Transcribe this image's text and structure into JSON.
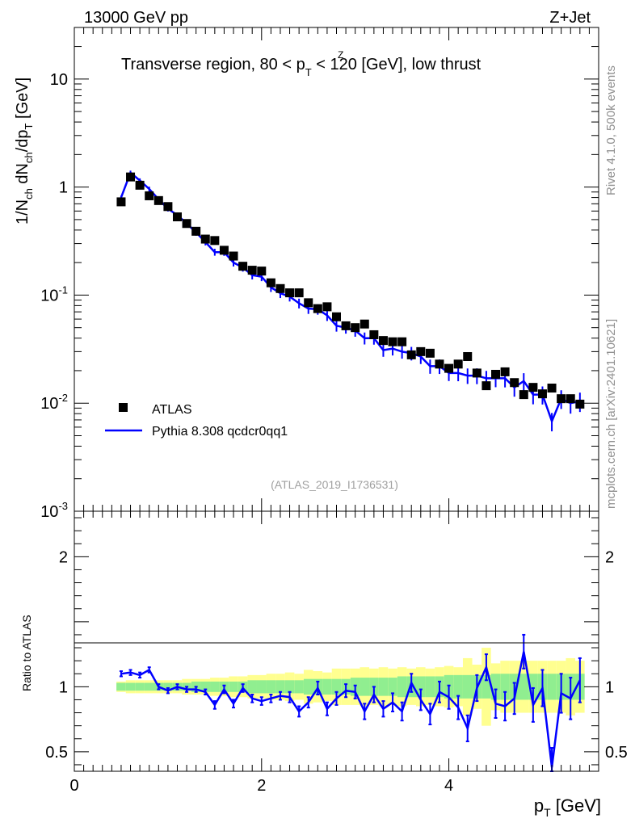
{
  "header": {
    "left": "13000 GeV pp",
    "right": "Z+Jet"
  },
  "side_labels": {
    "rivet": "Rivet 4.1.0,  500k events",
    "mcplots": "mcplots.cern.ch [arXiv:2401.10621]"
  },
  "chart_data": {
    "type": "scatter",
    "title_parts": {
      "a": "Transverse region, 80 < p",
      "sub": "T",
      "sup": "Z",
      "b": " < 120 [GeV], low thrust"
    },
    "watermark": "(ATLAS_2019_I1736531)",
    "xlabel": "p_T [GeV]",
    "ylabel": "1/N_ch dN_ch/dp_T [GeV]",
    "ratio_ylabel": "Ratio to ATLAS",
    "xlim": [
      0,
      5.6
    ],
    "ylim": [
      0.001,
      30
    ],
    "ratio_ylim": [
      0.35,
      2.35
    ],
    "x_ticks": [
      "0",
      "2",
      "4"
    ],
    "x_tick_values": [
      0,
      2,
      4
    ],
    "y_ticks": [
      "10",
      "1",
      "10^-1",
      "10^-2",
      "10^-3"
    ],
    "y_tick_values": [
      10,
      1,
      0.1,
      0.01,
      0.001
    ],
    "ratio_ticks": [
      "2",
      "1",
      "0.5"
    ],
    "ratio_tick_values": [
      2,
      1,
      0.5
    ],
    "legend": {
      "data_label": "ATLAS",
      "mc_label": "Pythia 8.308 qcdcr0qq1",
      "position": "lower-left"
    },
    "colors": {
      "data": "#000000",
      "mc": "#0000ff",
      "band_inner": "#90ee90",
      "band_outer": "#ffff90"
    },
    "x": [
      0.5,
      0.6,
      0.7,
      0.8,
      0.9,
      1.0,
      1.1,
      1.2,
      1.3,
      1.4,
      1.5,
      1.6,
      1.7,
      1.8,
      1.9,
      2.0,
      2.1,
      2.2,
      2.3,
      2.4,
      2.5,
      2.6,
      2.7,
      2.8,
      2.9,
      3.0,
      3.1,
      3.2,
      3.3,
      3.4,
      3.5,
      3.6,
      3.7,
      3.8,
      3.9,
      4.0,
      4.1,
      4.2,
      4.3,
      4.4,
      4.5,
      4.6,
      4.7,
      4.8,
      4.9,
      5.0,
      5.1,
      5.2,
      5.3,
      5.4
    ],
    "data_values": [
      0.73,
      1.24,
      1.04,
      0.83,
      0.75,
      0.66,
      0.53,
      0.46,
      0.39,
      0.33,
      0.32,
      0.26,
      0.23,
      0.185,
      0.17,
      0.167,
      0.13,
      0.115,
      0.105,
      0.105,
      0.085,
      0.075,
      0.078,
      0.063,
      0.052,
      0.05,
      0.054,
      0.043,
      0.038,
      0.037,
      0.037,
      0.028,
      0.03,
      0.029,
      0.023,
      0.021,
      0.023,
      0.027,
      0.019,
      0.0145,
      0.0185,
      0.0195,
      0.0155,
      0.012,
      0.014,
      0.0122,
      0.0138,
      0.011,
      0.011,
      0.0098
    ],
    "mc_values": [
      0.8,
      1.36,
      1.15,
      0.96,
      0.77,
      0.63,
      0.55,
      0.46,
      0.38,
      0.31,
      0.25,
      0.25,
      0.2,
      0.18,
      0.153,
      0.148,
      0.118,
      0.104,
      0.097,
      0.084,
      0.075,
      0.074,
      0.065,
      0.052,
      0.05,
      0.047,
      0.04,
      0.04,
      0.031,
      0.032,
      0.03,
      0.029,
      0.027,
      0.022,
      0.022,
      0.019,
      0.019,
      0.018,
      0.018,
      0.017,
      0.017,
      0.017,
      0.014,
      0.016,
      0.012,
      0.012,
      0.0068,
      0.011,
      0.01,
      0.0104
    ],
    "ratio_values": [
      1.1,
      1.11,
      1.09,
      1.13,
      1.0,
      0.97,
      1.0,
      0.98,
      0.98,
      0.96,
      0.86,
      0.98,
      0.87,
      0.99,
      0.91,
      0.89,
      0.91,
      0.93,
      0.92,
      0.81,
      0.88,
      0.99,
      0.83,
      0.91,
      0.97,
      0.96,
      0.81,
      0.94,
      0.83,
      0.88,
      0.81,
      1.03,
      0.9,
      0.79,
      0.96,
      0.92,
      0.84,
      0.68,
      0.99,
      1.15,
      0.87,
      0.85,
      0.91,
      1.27,
      0.86,
      0.99,
      0.38,
      0.95,
      0.91,
      1.05
    ],
    "ratio_errors": [
      0.02,
      0.02,
      0.02,
      0.02,
      0.02,
      0.02,
      0.02,
      0.02,
      0.02,
      0.02,
      0.03,
      0.03,
      0.03,
      0.03,
      0.03,
      0.03,
      0.03,
      0.03,
      0.04,
      0.04,
      0.04,
      0.05,
      0.05,
      0.05,
      0.05,
      0.05,
      0.06,
      0.06,
      0.06,
      0.07,
      0.07,
      0.07,
      0.08,
      0.08,
      0.08,
      0.09,
      0.09,
      0.1,
      0.1,
      0.1,
      0.11,
      0.11,
      0.12,
      0.13,
      0.13,
      0.14,
      0.15,
      0.15,
      0.16,
      0.17
    ],
    "band_inner": [
      0.03,
      0.03,
      0.03,
      0.03,
      0.03,
      0.03,
      0.03,
      0.03,
      0.04,
      0.04,
      0.04,
      0.04,
      0.04,
      0.04,
      0.05,
      0.05,
      0.05,
      0.05,
      0.05,
      0.05,
      0.06,
      0.06,
      0.06,
      0.06,
      0.06,
      0.07,
      0.07,
      0.07,
      0.07,
      0.07,
      0.08,
      0.08,
      0.08,
      0.08,
      0.08,
      0.09,
      0.09,
      0.09,
      0.09,
      0.09,
      0.1,
      0.1,
      0.1,
      0.1,
      0.1,
      0.1,
      0.1,
      0.1,
      0.1,
      0.1
    ],
    "band_outer": [
      0.04,
      0.05,
      0.05,
      0.05,
      0.05,
      0.05,
      0.05,
      0.06,
      0.06,
      0.06,
      0.07,
      0.07,
      0.08,
      0.08,
      0.09,
      0.09,
      0.1,
      0.1,
      0.11,
      0.1,
      0.13,
      0.12,
      0.11,
      0.14,
      0.14,
      0.14,
      0.15,
      0.14,
      0.15,
      0.14,
      0.15,
      0.14,
      0.15,
      0.14,
      0.15,
      0.16,
      0.15,
      0.22,
      0.17,
      0.3,
      0.18,
      0.2,
      0.2,
      0.2,
      0.2,
      0.2,
      0.2,
      0.2,
      0.22,
      0.2
    ]
  }
}
